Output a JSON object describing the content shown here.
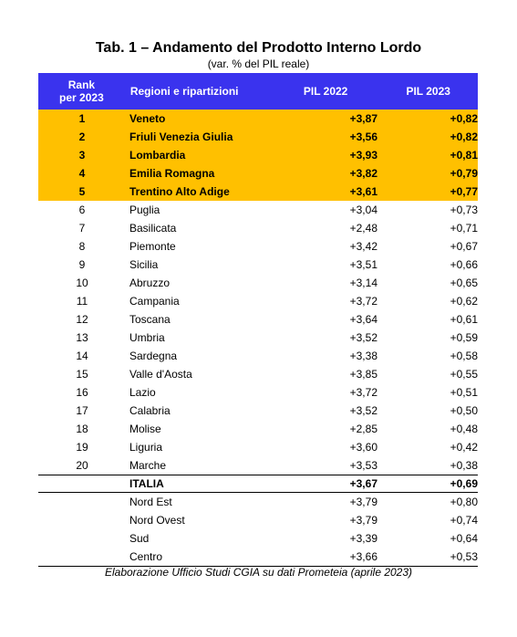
{
  "title": "Tab. 1 – Andamento del Prodotto Interno Lordo",
  "subtitle": "(var. % del PIL reale)",
  "header": {
    "rank_line1": "Rank",
    "rank_line2": "per 2023",
    "region": "Regioni e ripartizioni",
    "pil2022": "PIL 2022",
    "pil2023": "PIL 2023"
  },
  "rows": [
    {
      "rank": "1",
      "region": "Veneto",
      "pil2022": "+3,87",
      "pil2023": "+0,82"
    },
    {
      "rank": "2",
      "region": "Friuli Venezia Giulia",
      "pil2022": "+3,56",
      "pil2023": "+0,82"
    },
    {
      "rank": "3",
      "region": "Lombardia",
      "pil2022": "+3,93",
      "pil2023": "+0,81"
    },
    {
      "rank": "4",
      "region": "Emilia Romagna",
      "pil2022": "+3,82",
      "pil2023": "+0,79"
    },
    {
      "rank": "5",
      "region": "Trentino Alto Adige",
      "pil2022": "+3,61",
      "pil2023": "+0,77"
    },
    {
      "rank": "6",
      "region": "Puglia",
      "pil2022": "+3,04",
      "pil2023": "+0,73"
    },
    {
      "rank": "7",
      "region": "Basilicata",
      "pil2022": "+2,48",
      "pil2023": "+0,71"
    },
    {
      "rank": "8",
      "region": "Piemonte",
      "pil2022": "+3,42",
      "pil2023": "+0,67"
    },
    {
      "rank": "9",
      "region": "Sicilia",
      "pil2022": "+3,51",
      "pil2023": "+0,66"
    },
    {
      "rank": "10",
      "region": "Abruzzo",
      "pil2022": "+3,14",
      "pil2023": "+0,65"
    },
    {
      "rank": "11",
      "region": "Campania",
      "pil2022": "+3,72",
      "pil2023": "+0,62"
    },
    {
      "rank": "12",
      "region": "Toscana",
      "pil2022": "+3,64",
      "pil2023": "+0,61"
    },
    {
      "rank": "13",
      "region": "Umbria",
      "pil2022": "+3,52",
      "pil2023": "+0,59"
    },
    {
      "rank": "14",
      "region": "Sardegna",
      "pil2022": "+3,38",
      "pil2023": "+0,58"
    },
    {
      "rank": "15",
      "region": "Valle d'Aosta",
      "pil2022": "+3,85",
      "pil2023": "+0,55"
    },
    {
      "rank": "16",
      "region": "Lazio",
      "pil2022": "+3,72",
      "pil2023": "+0,51"
    },
    {
      "rank": "17",
      "region": "Calabria",
      "pil2022": "+3,52",
      "pil2023": "+0,50"
    },
    {
      "rank": "18",
      "region": "Molise",
      "pil2022": "+2,85",
      "pil2023": "+0,48"
    },
    {
      "rank": "19",
      "region": "Liguria",
      "pil2022": "+3,60",
      "pil2023": "+0,42"
    },
    {
      "rank": "20",
      "region": "Marche",
      "pil2022": "+3,53",
      "pil2023": "+0,38"
    }
  ],
  "total": {
    "region": "ITALIA",
    "pil2022": "+3,67",
    "pil2023": "+0,69"
  },
  "areas": [
    {
      "region": "Nord Est",
      "pil2022": "+3,79",
      "pil2023": "+0,80"
    },
    {
      "region": "Nord Ovest",
      "pil2022": "+3,79",
      "pil2023": "+0,74"
    },
    {
      "region": "Sud",
      "pil2022": "+3,39",
      "pil2023": "+0,64"
    },
    {
      "region": "Centro",
      "pil2022": "+3,66",
      "pil2023": "+0,53"
    }
  ],
  "footer": "Elaborazione Ufficio Studi CGIA su dati Prometeia (aprile 2023)",
  "colors": {
    "header_bg": "#3a33ee",
    "highlight_bg": "#ffc000"
  }
}
